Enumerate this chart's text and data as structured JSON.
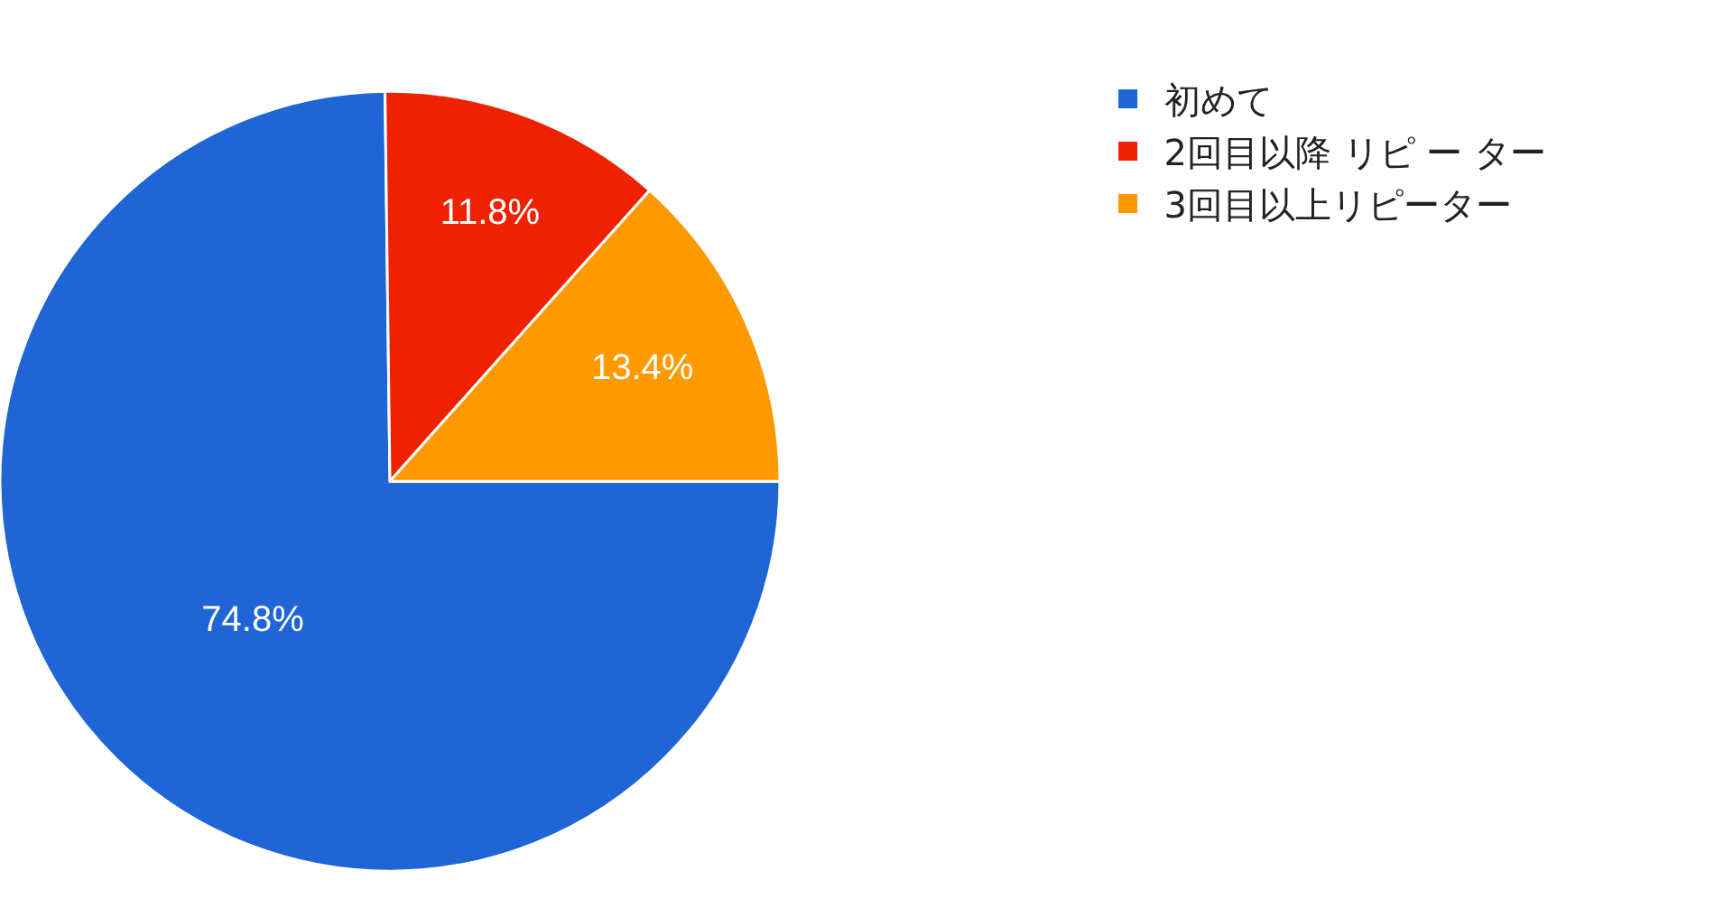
{
  "chart_data": {
    "type": "pie",
    "categories": [
      "初めて",
      "2回目以降 リピ ー ター",
      "3回目以上リピーター"
    ],
    "values": [
      74.8,
      11.8,
      13.4
    ],
    "value_labels": [
      "74.8%",
      "11.8%",
      "13.4%"
    ],
    "colors": [
      "#1f65d6",
      "#ee2200",
      "#ff9900"
    ],
    "legend": "top right"
  }
}
